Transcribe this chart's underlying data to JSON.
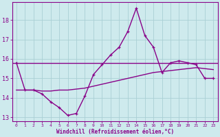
{
  "xlabel": "Windchill (Refroidissement éolien,°C)",
  "bg_color": "#ceeaed",
  "grid_color": "#aacfd4",
  "line_color": "#880088",
  "hours": [
    0,
    1,
    2,
    3,
    4,
    5,
    6,
    7,
    8,
    9,
    10,
    11,
    12,
    13,
    14,
    15,
    16,
    17,
    18,
    19,
    20,
    21,
    22,
    23
  ],
  "windchill": [
    15.8,
    14.4,
    14.4,
    14.2,
    13.8,
    13.5,
    13.1,
    13.2,
    14.1,
    15.2,
    15.7,
    16.2,
    16.6,
    17.4,
    18.6,
    17.2,
    16.6,
    15.3,
    15.8,
    15.9,
    15.8,
    15.7,
    15.0,
    15.0
  ],
  "trend2": [
    14.4,
    14.4,
    14.4,
    14.35,
    14.35,
    14.4,
    14.4,
    14.45,
    14.5,
    14.6,
    14.7,
    14.8,
    14.9,
    15.0,
    15.1,
    15.2,
    15.3,
    15.35,
    15.4,
    15.45,
    15.5,
    15.55,
    15.5,
    15.45
  ],
  "flat_line_y": 15.8,
  "ylim": [
    12.8,
    18.9
  ],
  "yticks": [
    13,
    14,
    15,
    16,
    17,
    18
  ],
  "xlim": [
    -0.5,
    23.5
  ]
}
